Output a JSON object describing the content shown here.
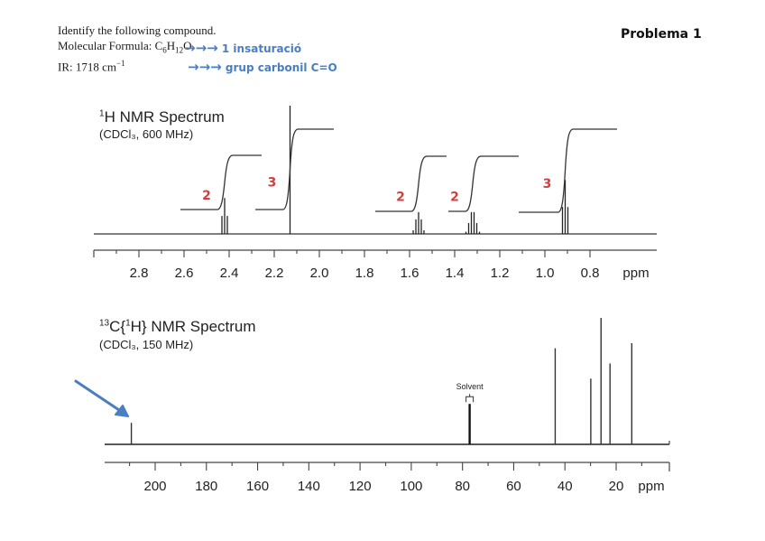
{
  "header": {
    "line1": "Identify the following compound.",
    "formula_label": "Molecular Formula: ",
    "formula": {
      "C": "C",
      "c_sub": "6",
      "H": "H",
      "h_sub": "12",
      "O": "O"
    },
    "ir_label": "IR:  1718 cm",
    "ir_sup": "−1",
    "problem": "Problema 1"
  },
  "annotations": {
    "arrows": "→→→",
    "note1": "1 insaturació",
    "note2": "grup carbonil C=O",
    "color": "#4a7ec2",
    "integral_color": "#d04040"
  },
  "chart_data": [
    {
      "type": "line",
      "name": "1H NMR",
      "title_sup": "1",
      "title": "H NMR Spectrum",
      "subtitle": "(CDCl₃, 600 MHz)",
      "xlabel": "ppm",
      "xlim": [
        3.0,
        0.5
      ],
      "x_reversed": true,
      "ticks": [
        2.8,
        2.6,
        2.4,
        2.2,
        2.0,
        1.8,
        1.6,
        1.4,
        1.2,
        1.0,
        0.8
      ],
      "tick_labels": [
        "2.8",
        "2.6",
        "2.4",
        "2.2",
        "2.0",
        "1.8",
        "1.6",
        "1.4",
        "1.2",
        "1.0",
        "0.8"
      ],
      "grid": false,
      "peaks": [
        {
          "shift": 2.42,
          "multiplicity": "t",
          "lines": 3,
          "rel_height": 0.28,
          "integral": "2"
        },
        {
          "shift": 2.13,
          "multiplicity": "s",
          "lines": 1,
          "rel_height": 1.0,
          "integral": "3"
        },
        {
          "shift": 1.56,
          "multiplicity": "m",
          "lines": 5,
          "rel_height": 0.17,
          "integral": "2"
        },
        {
          "shift": 1.32,
          "multiplicity": "m",
          "lines": 6,
          "rel_height": 0.17,
          "integral": "2"
        },
        {
          "shift": 0.91,
          "multiplicity": "t",
          "lines": 3,
          "rel_height": 0.42,
          "integral": "3"
        }
      ]
    },
    {
      "type": "bar",
      "name": "13C NMR",
      "title_sup": "13",
      "title_mid": "C{",
      "title_sup2": "1",
      "title": "H} NMR Spectrum",
      "subtitle": "(CDCl₃, 150 MHz)",
      "xlabel": "ppm",
      "xlim": [
        220,
        7
      ],
      "x_reversed": true,
      "ticks": [
        200,
        180,
        160,
        140,
        120,
        100,
        80,
        60,
        40,
        20
      ],
      "tick_labels": [
        "200",
        "180",
        "160",
        "140",
        "120",
        "100",
        "80",
        "60",
        "40",
        "20"
      ],
      "grid": false,
      "solvent_label": "Solvent",
      "peaks": [
        {
          "shift": 209.3,
          "rel_height": 0.17,
          "highlighted": true
        },
        {
          "shift": 77.2,
          "rel_height": 0.32,
          "solvent": true
        },
        {
          "shift": 43.8,
          "rel_height": 0.76
        },
        {
          "shift": 29.9,
          "rel_height": 0.52
        },
        {
          "shift": 25.9,
          "rel_height": 1.0
        },
        {
          "shift": 22.4,
          "rel_height": 0.64
        },
        {
          "shift": 13.9,
          "rel_height": 0.8
        }
      ]
    }
  ]
}
